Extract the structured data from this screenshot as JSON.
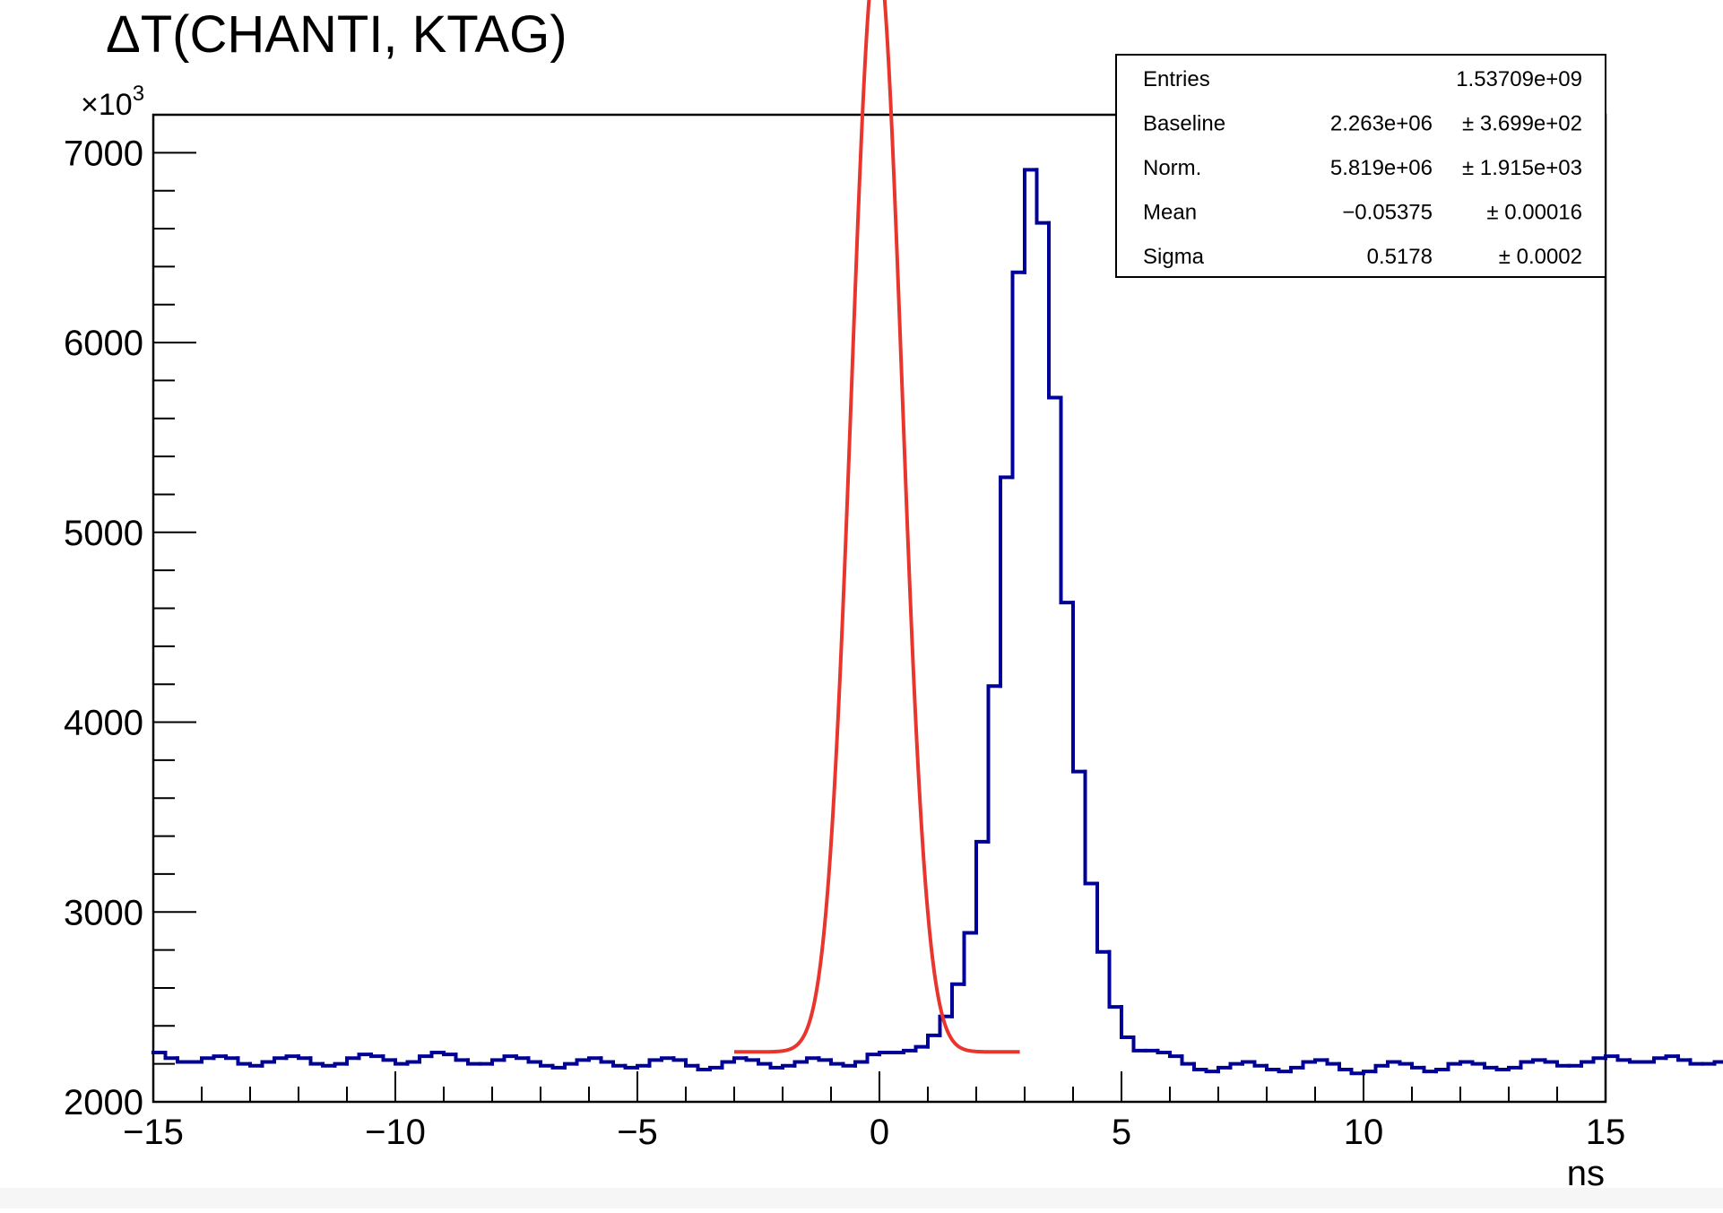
{
  "chart_data": {
    "type": "bar",
    "title": "ΔT(CHANTI, KTAG)",
    "xlabel": "ns",
    "ylabel": "",
    "y_multiplier_base": "×10",
    "y_multiplier_exp": "3",
    "xlim": [
      -15,
      15
    ],
    "ylim": [
      2000,
      7200
    ],
    "x_ticks": [
      -15,
      -10,
      -5,
      0,
      5,
      10,
      15
    ],
    "x_tick_labels": [
      "−15",
      "−10",
      "−5",
      "0",
      "5",
      "10",
      "15"
    ],
    "y_ticks": [
      2000,
      3000,
      4000,
      5000,
      6000,
      7000
    ],
    "y_tick_labels": [
      "2000",
      "3000",
      "4000",
      "5000",
      "6000",
      "7000"
    ],
    "histogram": {
      "name": "data",
      "color": "#000099",
      "bin_width": 0.25,
      "x_start": -15,
      "values": [
        2260,
        2230,
        2210,
        2210,
        2230,
        2240,
        2230,
        2200,
        2190,
        2210,
        2230,
        2240,
        2230,
        2200,
        2190,
        2200,
        2230,
        2250,
        2240,
        2220,
        2200,
        2210,
        2240,
        2260,
        2250,
        2220,
        2200,
        2200,
        2220,
        2240,
        2230,
        2210,
        2190,
        2180,
        2200,
        2220,
        2230,
        2210,
        2190,
        2180,
        2190,
        2220,
        2230,
        2220,
        2190,
        2170,
        2180,
        2210,
        2230,
        2220,
        2200,
        2180,
        2190,
        2210,
        2230,
        2220,
        2200,
        2190,
        2210,
        2250,
        2260,
        2260,
        2270,
        2290,
        2350,
        2450,
        2620,
        2890,
        3370,
        4190,
        5290,
        6370,
        6910,
        6630,
        5710,
        4630,
        3740,
        3150,
        2790,
        2500,
        2340,
        2270,
        2270,
        2260,
        2240,
        2200,
        2170,
        2160,
        2180,
        2200,
        2210,
        2190,
        2170,
        2160,
        2180,
        2210,
        2220,
        2200,
        2170,
        2150,
        2160,
        2190,
        2210,
        2200,
        2180,
        2160,
        2170,
        2200,
        2210,
        2200,
        2180,
        2170,
        2180,
        2210,
        2220,
        2210,
        2190,
        2190,
        2210,
        2230,
        2240,
        2220,
        2210,
        2210,
        2230,
        2240,
        2220,
        2200,
        2200,
        2210,
        2220,
        2210,
        2190,
        2180,
        2200,
        2220,
        2230,
        2210,
        2200,
        2200,
        2220,
        2240
      ]
    },
    "fit": {
      "name": "fit",
      "color": "#e8352e",
      "function": "gaussian plus baseline",
      "range": [
        -3,
        2.9
      ],
      "baseline": 2263000.0,
      "norm": 5819000.0,
      "mean": -0.05375,
      "sigma": 0.5178,
      "y_scale": 0.001
    },
    "stats_box": {
      "position": "top-right",
      "rows": [
        {
          "label": "Entries",
          "value": "1.53709e+09",
          "error": ""
        },
        {
          "label": "Baseline",
          "value": "2.263e+06",
          "error": "± 3.699e+02"
        },
        {
          "label": "Norm.",
          "value": "5.819e+06",
          "error": "± 1.915e+03"
        },
        {
          "label": "Mean",
          "value": "−0.05375",
          "error": "± 0.00016"
        },
        {
          "label": "Sigma",
          "value": "0.5178",
          "error": "± 0.0002"
        }
      ]
    },
    "grid": false
  }
}
